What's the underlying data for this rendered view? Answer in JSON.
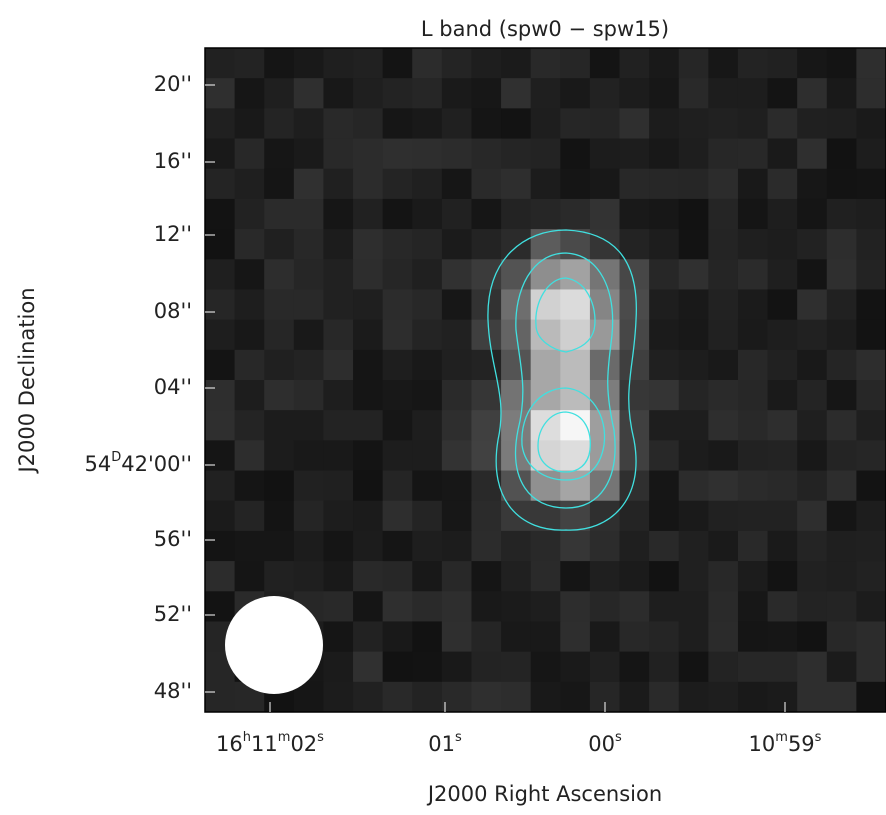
{
  "plot": {
    "title": "L band (spw0 − spw15)",
    "x_label": "J2000 Right Ascension",
    "y_label": "J2000 Declination",
    "y_ticks": [
      {
        "parts": [
          {
            "text": "20''"
          }
        ]
      },
      {
        "parts": [
          {
            "text": "16''"
          }
        ]
      },
      {
        "parts": [
          {
            "text": "12''"
          }
        ]
      },
      {
        "parts": [
          {
            "text": "08''"
          }
        ]
      },
      {
        "parts": [
          {
            "text": "04''"
          }
        ]
      },
      {
        "parts": [
          {
            "text": "54"
          },
          {
            "sup": "D"
          },
          {
            "text": "42'00''"
          }
        ]
      },
      {
        "parts": [
          {
            "text": "56''"
          }
        ]
      },
      {
        "parts": [
          {
            "text": "52''"
          }
        ]
      },
      {
        "parts": [
          {
            "text": "48''"
          }
        ]
      }
    ],
    "x_ticks": [
      {
        "parts": [
          {
            "text": "16"
          },
          {
            "sup": "h"
          },
          {
            "text": "11"
          },
          {
            "sup": "m"
          },
          {
            "text": "02"
          },
          {
            "sup": "s"
          }
        ]
      },
      {
        "parts": [
          {
            "text": "01"
          },
          {
            "sup": "s"
          }
        ]
      },
      {
        "parts": [
          {
            "text": "00"
          },
          {
            "sup": "s"
          }
        ]
      },
      {
        "parts": [
          {
            "text": "10"
          },
          {
            "sup": "m"
          },
          {
            "text": "59"
          },
          {
            "sup": "s"
          }
        ]
      }
    ]
  }
}
